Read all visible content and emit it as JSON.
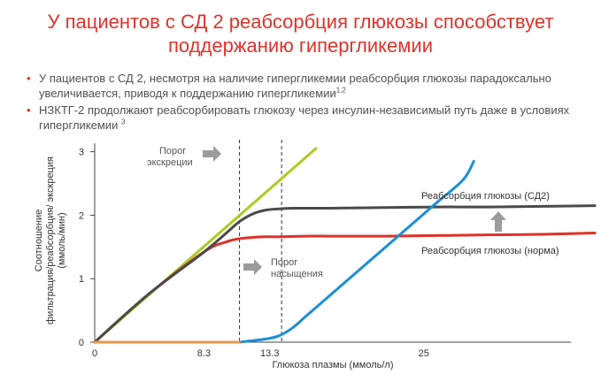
{
  "title_line1": "У пациентов с СД 2 реабсорбция глюкозы способствует",
  "title_line2": "поддержанию гипергликемии",
  "bullets": [
    {
      "text": "У пациентов с СД 2, несмотря на наличие гипергликемии реабсорбция глюкозы парадоксально увеличивается, приводя к поддержанию гипергликемии",
      "sup": "1,2"
    },
    {
      "text": "НЗКТГ-2 продолжают реабсорбировать глюкозу через инсулин-независимый путь даже в условиях гипергликемии",
      "sup": "3"
    }
  ],
  "colors": {
    "title": "#e1322b",
    "filtration": "#aacc22",
    "reabsorption_t2d": "#4a4a4a",
    "reabsorption_normal": "#e03028",
    "excretion": "#1b8fd6",
    "baseline": "#e8944a",
    "arrow": "#9c9c9c"
  },
  "chart_data": {
    "type": "line",
    "xlabel": "Глюкоза плазмы (ммоль/л)",
    "ylabel_line1": "Соотношение",
    "ylabel_line2": "фильтрация/реабсорбция/ экскреция",
    "ylabel_line3": "(ммоль/мин)",
    "xlim": [
      0,
      38
    ],
    "ylim": [
      0,
      3.2
    ],
    "xticks": [
      {
        "value": 0,
        "label": "0"
      },
      {
        "value": 8.3,
        "label": "8.3"
      },
      {
        "value": 13.3,
        "label": "13.3"
      },
      {
        "value": 25,
        "label": "25"
      }
    ],
    "yticks": [
      {
        "value": 0,
        "label": "0"
      },
      {
        "value": 1,
        "label": "1"
      },
      {
        "value": 2,
        "label": "2"
      },
      {
        "value": 3,
        "label": "3"
      }
    ],
    "vlines": [
      11.0,
      14.2
    ],
    "series": [
      {
        "key": "filtration",
        "name": "",
        "x": [
          0,
          16.8
        ],
        "y": [
          0,
          3.05
        ]
      },
      {
        "key": "reabsorption_t2d",
        "name": "Реабсорбция глюкозы (СД2)",
        "x": [
          0,
          4,
          8.3,
          10,
          11,
          12,
          13,
          14,
          15,
          16,
          18,
          22,
          26,
          30,
          34,
          38
        ],
        "y": [
          0,
          0.74,
          1.42,
          1.72,
          1.9,
          2.02,
          2.08,
          2.1,
          2.11,
          2.11,
          2.11,
          2.12,
          2.13,
          2.13,
          2.14,
          2.15
        ]
      },
      {
        "key": "reabsorption_normal",
        "name": "Реабсорбция глюкозы (норма)",
        "x": [
          0,
          4,
          8.3,
          10,
          11,
          12,
          13,
          14,
          16,
          18,
          22,
          26,
          30,
          34,
          38
        ],
        "y": [
          0,
          0.74,
          1.42,
          1.58,
          1.63,
          1.65,
          1.66,
          1.66,
          1.67,
          1.67,
          1.67,
          1.68,
          1.69,
          1.7,
          1.72
        ]
      },
      {
        "key": "excretion",
        "name": "",
        "x": [
          11,
          13,
          14,
          15,
          16,
          17,
          18,
          20,
          22,
          24,
          26,
          28,
          28.8
        ],
        "y": [
          0,
          0.05,
          0.1,
          0.22,
          0.4,
          0.58,
          0.76,
          1.12,
          1.48,
          1.84,
          2.2,
          2.56,
          2.85
        ]
      },
      {
        "key": "baseline",
        "name": "",
        "x": [
          0,
          11
        ],
        "y": [
          0,
          0
        ]
      }
    ],
    "annotations": {
      "excretion_threshold": [
        "Порог",
        "экскреции"
      ],
      "saturation_threshold": [
        "Порог",
        "насыщения"
      ]
    }
  }
}
